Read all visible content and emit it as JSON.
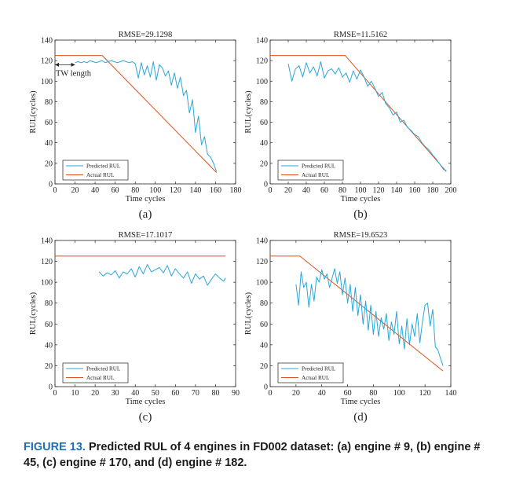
{
  "caption": {
    "label": "FIGURE 13.",
    "text": "Predicted RUL of 4 engines in FD002 dataset: (a) engine # 9, (b) engine # 45, (c) engine # 170, and (d) engine # 182."
  },
  "colors": {
    "predicted": "#2aa7d8",
    "actual": "#d9531e",
    "axis": "#222222"
  },
  "chart_data": [
    {
      "type": "line",
      "panel_label": "(a)",
      "title": "RMSE=29.1298",
      "xlabel": "Time cycles",
      "ylabel": "RUL(cycles)",
      "xlim": [
        0,
        180
      ],
      "ylim": [
        0,
        140
      ],
      "xticks": [
        0,
        20,
        40,
        60,
        80,
        100,
        120,
        140,
        160,
        180
      ],
      "yticks": [
        0,
        20,
        40,
        60,
        80,
        100,
        120,
        140
      ],
      "legend_position": "bottom-left",
      "annotation": {
        "text": "TW length",
        "x_range": [
          0,
          20
        ],
        "y": 116
      },
      "series": [
        {
          "name": "Predicted RUL",
          "x": [
            20,
            23,
            26,
            29,
            32,
            35,
            38,
            41,
            44,
            47,
            50,
            53,
            56,
            59,
            62,
            65,
            68,
            71,
            74,
            77,
            80,
            83,
            86,
            89,
            92,
            95,
            98,
            101,
            104,
            107,
            110,
            113,
            116,
            119,
            122,
            125,
            128,
            131,
            134,
            137,
            140,
            143,
            146,
            149,
            152,
            155,
            158,
            161
          ],
          "y": [
            118,
            119,
            118,
            119,
            118,
            120,
            119,
            118,
            119,
            120,
            118,
            119,
            120,
            119,
            118,
            119,
            120,
            119,
            118,
            119,
            117,
            103,
            118,
            106,
            115,
            104,
            119,
            101,
            116,
            113,
            105,
            110,
            96,
            108,
            93,
            104,
            86,
            91,
            69,
            82,
            50,
            66,
            38,
            46,
            29,
            26,
            20,
            12
          ]
        },
        {
          "name": "Actual RUL",
          "x": [
            0,
            47,
            161
          ],
          "y": [
            125,
            125,
            11
          ]
        }
      ]
    },
    {
      "type": "line",
      "panel_label": "(b)",
      "title": "RMSE=11.5162",
      "xlabel": "Time cycles",
      "ylabel": "RUL(cycles)",
      "xlim": [
        0,
        200
      ],
      "ylim": [
        0,
        140
      ],
      "xticks": [
        0,
        20,
        40,
        60,
        80,
        100,
        120,
        140,
        160,
        180,
        200
      ],
      "yticks": [
        0,
        20,
        40,
        60,
        80,
        100,
        120,
        140
      ],
      "legend_position": "bottom-left",
      "series": [
        {
          "name": "Predicted RUL",
          "x": [
            20,
            24,
            28,
            32,
            36,
            40,
            44,
            48,
            52,
            56,
            60,
            64,
            68,
            72,
            76,
            80,
            84,
            88,
            92,
            96,
            100,
            104,
            108,
            112,
            116,
            120,
            124,
            128,
            132,
            136,
            140,
            144,
            148,
            152,
            156,
            160,
            164,
            168,
            172,
            176,
            180,
            184,
            188,
            192,
            195
          ],
          "y": [
            117,
            100,
            112,
            115,
            104,
            118,
            108,
            114,
            105,
            119,
            103,
            110,
            112,
            107,
            113,
            104,
            108,
            99,
            110,
            102,
            111,
            104,
            95,
            100,
            93,
            85,
            89,
            78,
            74,
            67,
            70,
            60,
            62,
            55,
            52,
            48,
            46,
            40,
            36,
            33,
            28,
            24,
            19,
            14,
            13
          ]
        },
        {
          "name": "Actual RUL",
          "x": [
            0,
            83,
            195
          ],
          "y": [
            125,
            125,
            12
          ]
        }
      ]
    },
    {
      "type": "line",
      "panel_label": "(c)",
      "title": "RMSE=17.1017",
      "xlabel": "Time cycles",
      "ylabel": "RUL(cycles)",
      "xlim": [
        0,
        90
      ],
      "ylim": [
        0,
        140
      ],
      "xticks": [
        0,
        10,
        20,
        30,
        40,
        50,
        60,
        70,
        80,
        90
      ],
      "yticks": [
        0,
        20,
        40,
        60,
        80,
        100,
        120,
        140
      ],
      "legend_position": "bottom-left",
      "series": [
        {
          "name": "Predicted RUL",
          "x": [
            22,
            24,
            26,
            28,
            30,
            32,
            34,
            36,
            38,
            40,
            42,
            44,
            46,
            48,
            50,
            52,
            54,
            56,
            58,
            60,
            62,
            64,
            66,
            68,
            70,
            72,
            74,
            76,
            78,
            80,
            82,
            84,
            85
          ],
          "y": [
            110,
            106,
            109,
            107,
            111,
            104,
            110,
            108,
            113,
            105,
            115,
            108,
            117,
            110,
            112,
            114,
            109,
            116,
            106,
            113,
            108,
            104,
            110,
            99,
            108,
            103,
            106,
            97,
            103,
            108,
            104,
            101,
            104
          ]
        },
        {
          "name": "Actual RUL",
          "x": [
            0,
            85
          ],
          "y": [
            125,
            125
          ]
        }
      ]
    },
    {
      "type": "line",
      "panel_label": "(d)",
      "title": "RMSE=19.6523",
      "xlabel": "Time cycles",
      "ylabel": "RUL(cycles)",
      "xlim": [
        0,
        140
      ],
      "ylim": [
        0,
        140
      ],
      "xticks": [
        0,
        20,
        40,
        60,
        80,
        100,
        120,
        140
      ],
      "yticks": [
        0,
        20,
        40,
        60,
        80,
        100,
        120,
        140
      ],
      "legend_position": "bottom-left",
      "series": [
        {
          "name": "Predicted RUL",
          "x": [
            20,
            22,
            24,
            26,
            28,
            30,
            32,
            34,
            36,
            38,
            40,
            42,
            44,
            46,
            48,
            50,
            52,
            54,
            56,
            58,
            60,
            62,
            64,
            66,
            68,
            70,
            72,
            74,
            76,
            78,
            80,
            82,
            84,
            86,
            88,
            90,
            92,
            94,
            96,
            98,
            100,
            102,
            104,
            106,
            108,
            110,
            112,
            114,
            116,
            118,
            120,
            122,
            124,
            126,
            128,
            130,
            132,
            134
          ],
          "y": [
            98,
            78,
            110,
            95,
            100,
            76,
            98,
            82,
            105,
            100,
            112,
            103,
            108,
            95,
            104,
            113,
            99,
            110,
            88,
            104,
            80,
            98,
            72,
            95,
            68,
            88,
            60,
            82,
            54,
            78,
            50,
            72,
            48,
            66,
            55,
            70,
            44,
            62,
            50,
            72,
            41,
            58,
            36,
            65,
            40,
            60,
            48,
            70,
            42,
            62,
            78,
            80,
            58,
            74,
            38,
            35,
            27,
            20
          ]
        },
        {
          "name": "Actual RUL",
          "x": [
            0,
            23,
            134
          ],
          "y": [
            125,
            125,
            15
          ]
        }
      ]
    }
  ]
}
